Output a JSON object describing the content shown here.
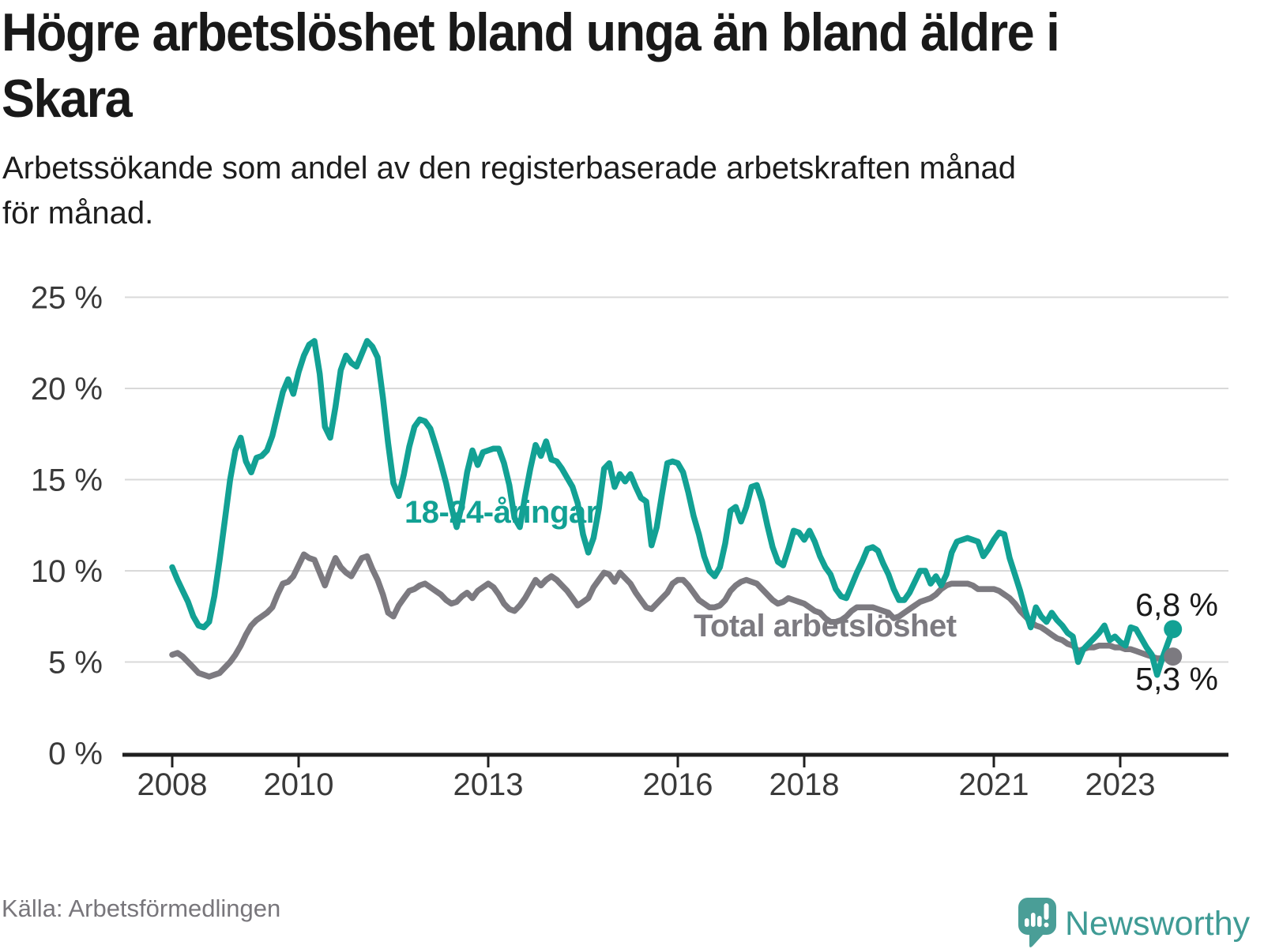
{
  "header": {
    "title": "Högre arbetslöshet bland unga än bland äldre i Skara",
    "title_lines": [
      "Högre arbetslöshet bland unga än bland äldre i",
      "Skara"
    ],
    "subtitle": "Arbetssökande som andel av den registerbaserade arbetskraften månad för månad.",
    "subtitle_lines": [
      "Arbetssökande som andel av den registerbaserade arbetskraften månad",
      "för månad."
    ]
  },
  "theme": {
    "accent_teal": "#12a194",
    "accent_gray": "#7c7a80",
    "axis_color": "#1f1f1f",
    "grid_color": "#d9d9d9",
    "tick_label_color": "#3a3a3a",
    "end_label_color": "#1a1a1a",
    "logo_color": "#4a9e97"
  },
  "chart_data": {
    "type": "line",
    "title": "Högre arbetslöshet bland unga än bland äldre i Skara",
    "subtitle": "Arbetssökande som andel av den registerbaserade arbetskraften månad för månad.",
    "unit": "%",
    "start_year": 2008,
    "start_month": 1,
    "end_year": 2023,
    "interval": "month",
    "ylim": [
      0,
      25
    ],
    "grid": true,
    "legend_position": "inline-labels",
    "y_ticks": [
      {
        "value": 0,
        "label": "0 %"
      },
      {
        "value": 5,
        "label": "5 %"
      },
      {
        "value": 10,
        "label": "10 %"
      },
      {
        "value": 15,
        "label": "15 %"
      },
      {
        "value": 20,
        "label": "20 %"
      },
      {
        "value": 25,
        "label": "25 %"
      }
    ],
    "x_ticks": [
      {
        "year": 2008,
        "label": "2008"
      },
      {
        "year": 2010,
        "label": "2010"
      },
      {
        "year": 2013,
        "label": "2013"
      },
      {
        "year": 2016,
        "label": "2016"
      },
      {
        "year": 2018,
        "label": "2018"
      },
      {
        "year": 2021,
        "label": "2021"
      },
      {
        "year": 2023,
        "label": "2023"
      }
    ],
    "series": [
      {
        "name": "Total arbetslöshet",
        "color": "#7c7a80",
        "values": [
          5.4,
          5.5,
          5.3,
          5.0,
          4.7,
          4.4,
          4.3,
          4.2,
          4.3,
          4.4,
          4.7,
          5.0,
          5.4,
          5.9,
          6.5,
          7.0,
          7.3,
          7.5,
          7.7,
          8.0,
          8.7,
          9.3,
          9.4,
          9.7,
          10.3,
          10.9,
          10.7,
          10.6,
          9.9,
          9.2,
          10.0,
          10.7,
          10.2,
          9.9,
          9.7,
          10.2,
          10.7,
          10.8,
          10.1,
          9.5,
          8.7,
          7.7,
          7.5,
          8.1,
          8.5,
          8.9,
          9.0,
          9.2,
          9.3,
          9.1,
          8.9,
          8.7,
          8.4,
          8.2,
          8.3,
          8.6,
          8.8,
          8.5,
          8.9,
          9.1,
          9.3,
          9.1,
          8.7,
          8.2,
          7.9,
          7.8,
          8.1,
          8.5,
          9.0,
          9.5,
          9.2,
          9.5,
          9.7,
          9.5,
          9.2,
          8.9,
          8.5,
          8.1,
          8.3,
          8.5,
          9.1,
          9.5,
          9.9,
          9.8,
          9.4,
          9.9,
          9.6,
          9.3,
          8.8,
          8.4,
          8.0,
          7.9,
          8.2,
          8.5,
          8.8,
          9.3,
          9.5,
          9.5,
          9.2,
          8.8,
          8.4,
          8.2,
          8.0,
          8.0,
          8.1,
          8.4,
          8.9,
          9.2,
          9.4,
          9.5,
          9.4,
          9.3,
          9.0,
          8.7,
          8.4,
          8.2,
          8.3,
          8.5,
          8.4,
          8.3,
          8.2,
          8.0,
          7.8,
          7.7,
          7.4,
          7.2,
          7.2,
          7.3,
          7.5,
          7.8,
          8.0,
          8.0,
          8.0,
          8.0,
          7.9,
          7.8,
          7.7,
          7.4,
          7.5,
          7.7,
          7.9,
          8.1,
          8.3,
          8.4,
          8.5,
          8.7,
          9.0,
          9.2,
          9.3,
          9.3,
          9.3,
          9.3,
          9.2,
          9.0,
          9.0,
          9.0,
          9.0,
          8.9,
          8.7,
          8.5,
          8.2,
          7.8,
          7.5,
          7.2,
          7.0,
          6.9,
          6.7,
          6.5,
          6.3,
          6.2,
          6.0,
          5.9,
          5.6,
          5.7,
          5.8,
          5.8,
          5.9,
          5.9,
          5.9,
          5.8,
          5.8,
          5.7,
          5.7,
          5.6,
          5.5,
          5.4,
          5.3,
          5.2,
          5.2,
          5.2,
          5.3
        ]
      },
      {
        "name": "18-24-åringar",
        "color": "#12a194",
        "values": [
          10.2,
          9.5,
          8.9,
          8.3,
          7.5,
          7.0,
          6.9,
          7.2,
          8.6,
          10.6,
          12.8,
          15.0,
          16.6,
          17.3,
          16.0,
          15.4,
          16.2,
          16.3,
          16.6,
          17.4,
          18.6,
          19.8,
          20.5,
          19.7,
          20.9,
          21.8,
          22.4,
          22.6,
          20.8,
          17.9,
          17.3,
          19.0,
          21.0,
          21.8,
          21.4,
          21.2,
          21.9,
          22.6,
          22.3,
          21.7,
          19.5,
          17.0,
          14.8,
          14.1,
          15.3,
          16.8,
          17.9,
          18.3,
          18.2,
          17.8,
          16.9,
          15.9,
          14.8,
          13.5,
          12.4,
          13.6,
          15.4,
          16.6,
          15.8,
          16.5,
          16.6,
          16.7,
          16.7,
          15.9,
          14.7,
          12.9,
          12.4,
          14.1,
          15.6,
          16.9,
          16.3,
          17.1,
          16.1,
          16.0,
          15.6,
          15.1,
          14.6,
          13.7,
          12.0,
          11.0,
          11.8,
          13.4,
          15.6,
          15.9,
          14.6,
          15.3,
          14.9,
          15.3,
          14.6,
          14.0,
          13.8,
          11.4,
          12.4,
          14.2,
          15.9,
          16.0,
          15.9,
          15.4,
          14.3,
          13.0,
          12.0,
          10.8,
          10.0,
          9.7,
          10.2,
          11.5,
          13.3,
          13.5,
          12.7,
          13.5,
          14.6,
          14.7,
          13.8,
          12.5,
          11.3,
          10.5,
          10.3,
          11.2,
          12.2,
          12.1,
          11.7,
          12.2,
          11.6,
          10.8,
          10.2,
          9.8,
          9.0,
          8.6,
          8.5,
          9.2,
          9.9,
          10.5,
          11.2,
          11.3,
          11.1,
          10.4,
          9.8,
          9.0,
          8.4,
          8.4,
          8.8,
          9.4,
          10.0,
          10.0,
          9.3,
          9.7,
          9.2,
          9.8,
          11.0,
          11.6,
          11.7,
          11.8,
          11.7,
          11.6,
          10.8,
          11.2,
          11.7,
          12.1,
          12.0,
          10.7,
          9.8,
          8.9,
          7.8,
          6.9,
          8.0,
          7.5,
          7.2,
          7.7,
          7.3,
          7.0,
          6.6,
          6.4,
          5.0,
          5.7,
          6.0,
          6.3,
          6.6,
          7.0,
          6.2,
          6.4,
          6.1,
          5.9,
          6.9,
          6.8,
          6.3,
          5.8,
          5.4,
          4.3,
          5.2,
          6.0,
          6.8
        ]
      }
    ],
    "end_labels": [
      {
        "series": "18-24-åringar",
        "text": "6,8 %",
        "value": 6.8
      },
      {
        "series": "Total arbetslöshet",
        "text": "5,3 %",
        "value": 5.3
      }
    ]
  },
  "footer": {
    "source": "Källa: Arbetsförmedlingen",
    "brand": "Newsworthy"
  }
}
